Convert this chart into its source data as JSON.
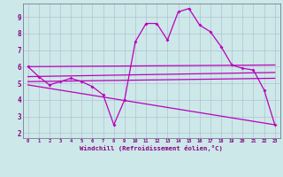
{
  "xlabel": "Windchill (Refroidissement éolien,°C)",
  "bg_color": "#cce8e8",
  "grid_color": "#aaaacc",
  "line_color": "#bb00bb",
  "tick_color": "#880088",
  "x_ticks": [
    0,
    1,
    2,
    3,
    4,
    5,
    6,
    7,
    8,
    9,
    10,
    11,
    12,
    13,
    14,
    15,
    16,
    17,
    18,
    19,
    20,
    21,
    22,
    23
  ],
  "y_ticks": [
    2,
    3,
    4,
    5,
    6,
    7,
    8,
    9
  ],
  "ylim": [
    1.7,
    9.8
  ],
  "xlim": [
    -0.5,
    23.5
  ],
  "line1_x": [
    0,
    1,
    2,
    3,
    4,
    5,
    6,
    7,
    8,
    9,
    10,
    11,
    12,
    13,
    14,
    15,
    16,
    17,
    18,
    19,
    20,
    21,
    22,
    23
  ],
  "line1_y": [
    6.0,
    5.4,
    4.9,
    5.1,
    5.3,
    5.1,
    4.8,
    4.3,
    2.5,
    4.0,
    7.5,
    8.6,
    8.6,
    7.6,
    9.3,
    9.5,
    8.5,
    8.1,
    7.2,
    6.1,
    5.9,
    5.8,
    4.6,
    2.5
  ],
  "line2_x": [
    0,
    23
  ],
  "line2_y": [
    6.0,
    6.1
  ],
  "line3_x": [
    0,
    23
  ],
  "line3_y": [
    5.4,
    5.65
  ],
  "line4_x": [
    0,
    23
  ],
  "line4_y": [
    5.1,
    5.3
  ],
  "line5_x": [
    0,
    23
  ],
  "line5_y": [
    4.9,
    2.5
  ],
  "spine_color": "#888888"
}
